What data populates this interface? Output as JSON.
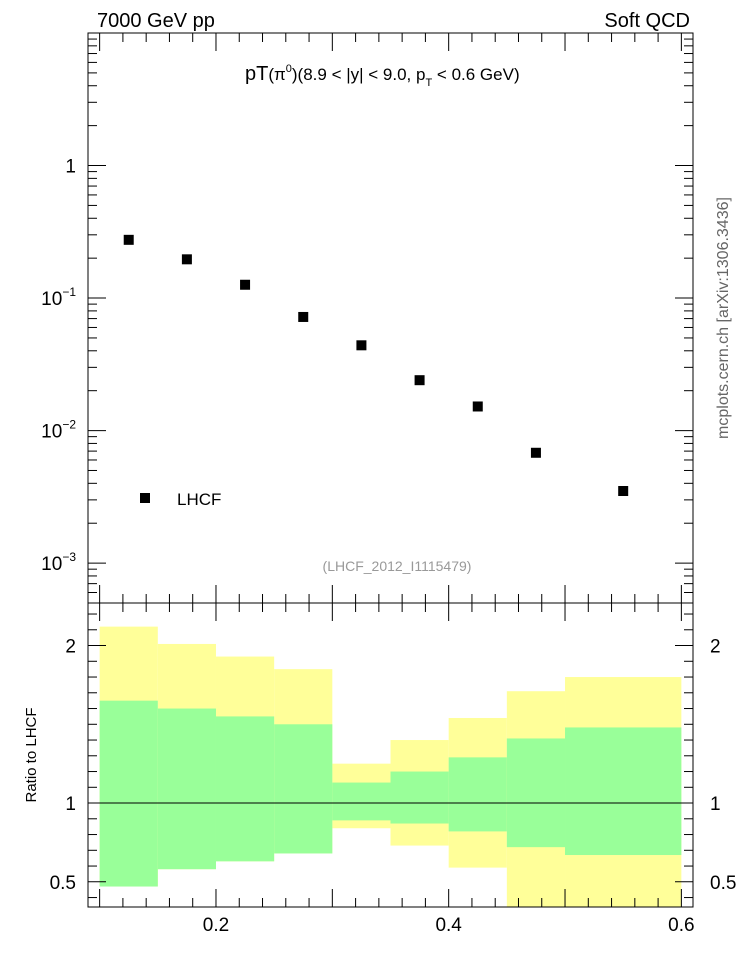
{
  "header": {
    "left_label": "7000 GeV pp",
    "right_label": "Soft QCD"
  },
  "side_label": "mcplots.cern.ch [arXiv:1306.3436]",
  "chart_data": [
    {
      "type": "scatter",
      "title": {
        "main": "pT",
        "paren_open": "(",
        "particle": "π",
        "particle_sup": "0",
        "paren_close": ")",
        "cut_a": "(8.9 < |y| < 9.0, p",
        "cut_sub": "T",
        "cut_b": " < 0.6 GeV)"
      },
      "xlim": [
        0.09,
        0.61
      ],
      "ylim": [
        0.0005,
        10
      ],
      "yscale": "log",
      "y_ticks": [
        {
          "value": 1,
          "base": "1",
          "exp": ""
        },
        {
          "value": 0.1,
          "base": "10",
          "exp": "−1"
        },
        {
          "value": 0.01,
          "base": "10",
          "exp": "−2"
        },
        {
          "value": 0.001,
          "base": "10",
          "exp": "−3"
        }
      ],
      "series": [
        {
          "name": "LHCF",
          "color": "#000000",
          "x": [
            0.125,
            0.175,
            0.225,
            0.275,
            0.325,
            0.375,
            0.425,
            0.475,
            0.55
          ],
          "y": [
            0.275,
            0.196,
            0.126,
            0.072,
            0.044,
            0.024,
            0.0152,
            0.0068,
            0.0035
          ]
        }
      ],
      "legend_position": "bottom-left",
      "annotation": "(LHCF_2012_I1115479)"
    },
    {
      "type": "area",
      "ylabel": "Ratio to LHCF",
      "xlim": [
        0.09,
        0.61
      ],
      "ylim": [
        0.34,
        2.27
      ],
      "x_ticks": [
        {
          "value": 0.2,
          "label": "0.2"
        },
        {
          "value": 0.4,
          "label": "0.4"
        },
        {
          "value": 0.6,
          "label": "0.6"
        }
      ],
      "y_ticks": [
        {
          "value": 0.5,
          "label": "0.5"
        },
        {
          "value": 1,
          "label": "1"
        },
        {
          "value": 2,
          "label": "2"
        }
      ],
      "reference_line": 1,
      "bins": [
        {
          "lo": 0.1,
          "hi": 0.15,
          "yellow": [
            0.47,
            2.12
          ],
          "green": [
            0.47,
            1.65
          ]
        },
        {
          "lo": 0.15,
          "hi": 0.2,
          "yellow": [
            0.58,
            2.01
          ],
          "green": [
            0.58,
            1.6
          ]
        },
        {
          "lo": 0.2,
          "hi": 0.25,
          "yellow": [
            0.63,
            1.93
          ],
          "green": [
            0.63,
            1.55
          ]
        },
        {
          "lo": 0.25,
          "hi": 0.3,
          "yellow": [
            0.68,
            1.85
          ],
          "green": [
            0.68,
            1.5
          ]
        },
        {
          "lo": 0.3,
          "hi": 0.35,
          "yellow": [
            0.84,
            1.25
          ],
          "green": [
            0.89,
            1.13
          ]
        },
        {
          "lo": 0.35,
          "hi": 0.4,
          "yellow": [
            0.73,
            1.4
          ],
          "green": [
            0.87,
            1.2
          ]
        },
        {
          "lo": 0.4,
          "hi": 0.45,
          "yellow": [
            0.59,
            1.54
          ],
          "green": [
            0.82,
            1.29
          ]
        },
        {
          "lo": 0.45,
          "hi": 0.5,
          "yellow": [
            0.34,
            1.71
          ],
          "green": [
            0.72,
            1.41
          ]
        },
        {
          "lo": 0.5,
          "hi": 0.6,
          "yellow": [
            0.34,
            1.8
          ],
          "green": [
            0.67,
            1.48
          ]
        }
      ],
      "colors": {
        "outer_band": "#ffff99",
        "inner_band": "#99ff99"
      }
    }
  ]
}
